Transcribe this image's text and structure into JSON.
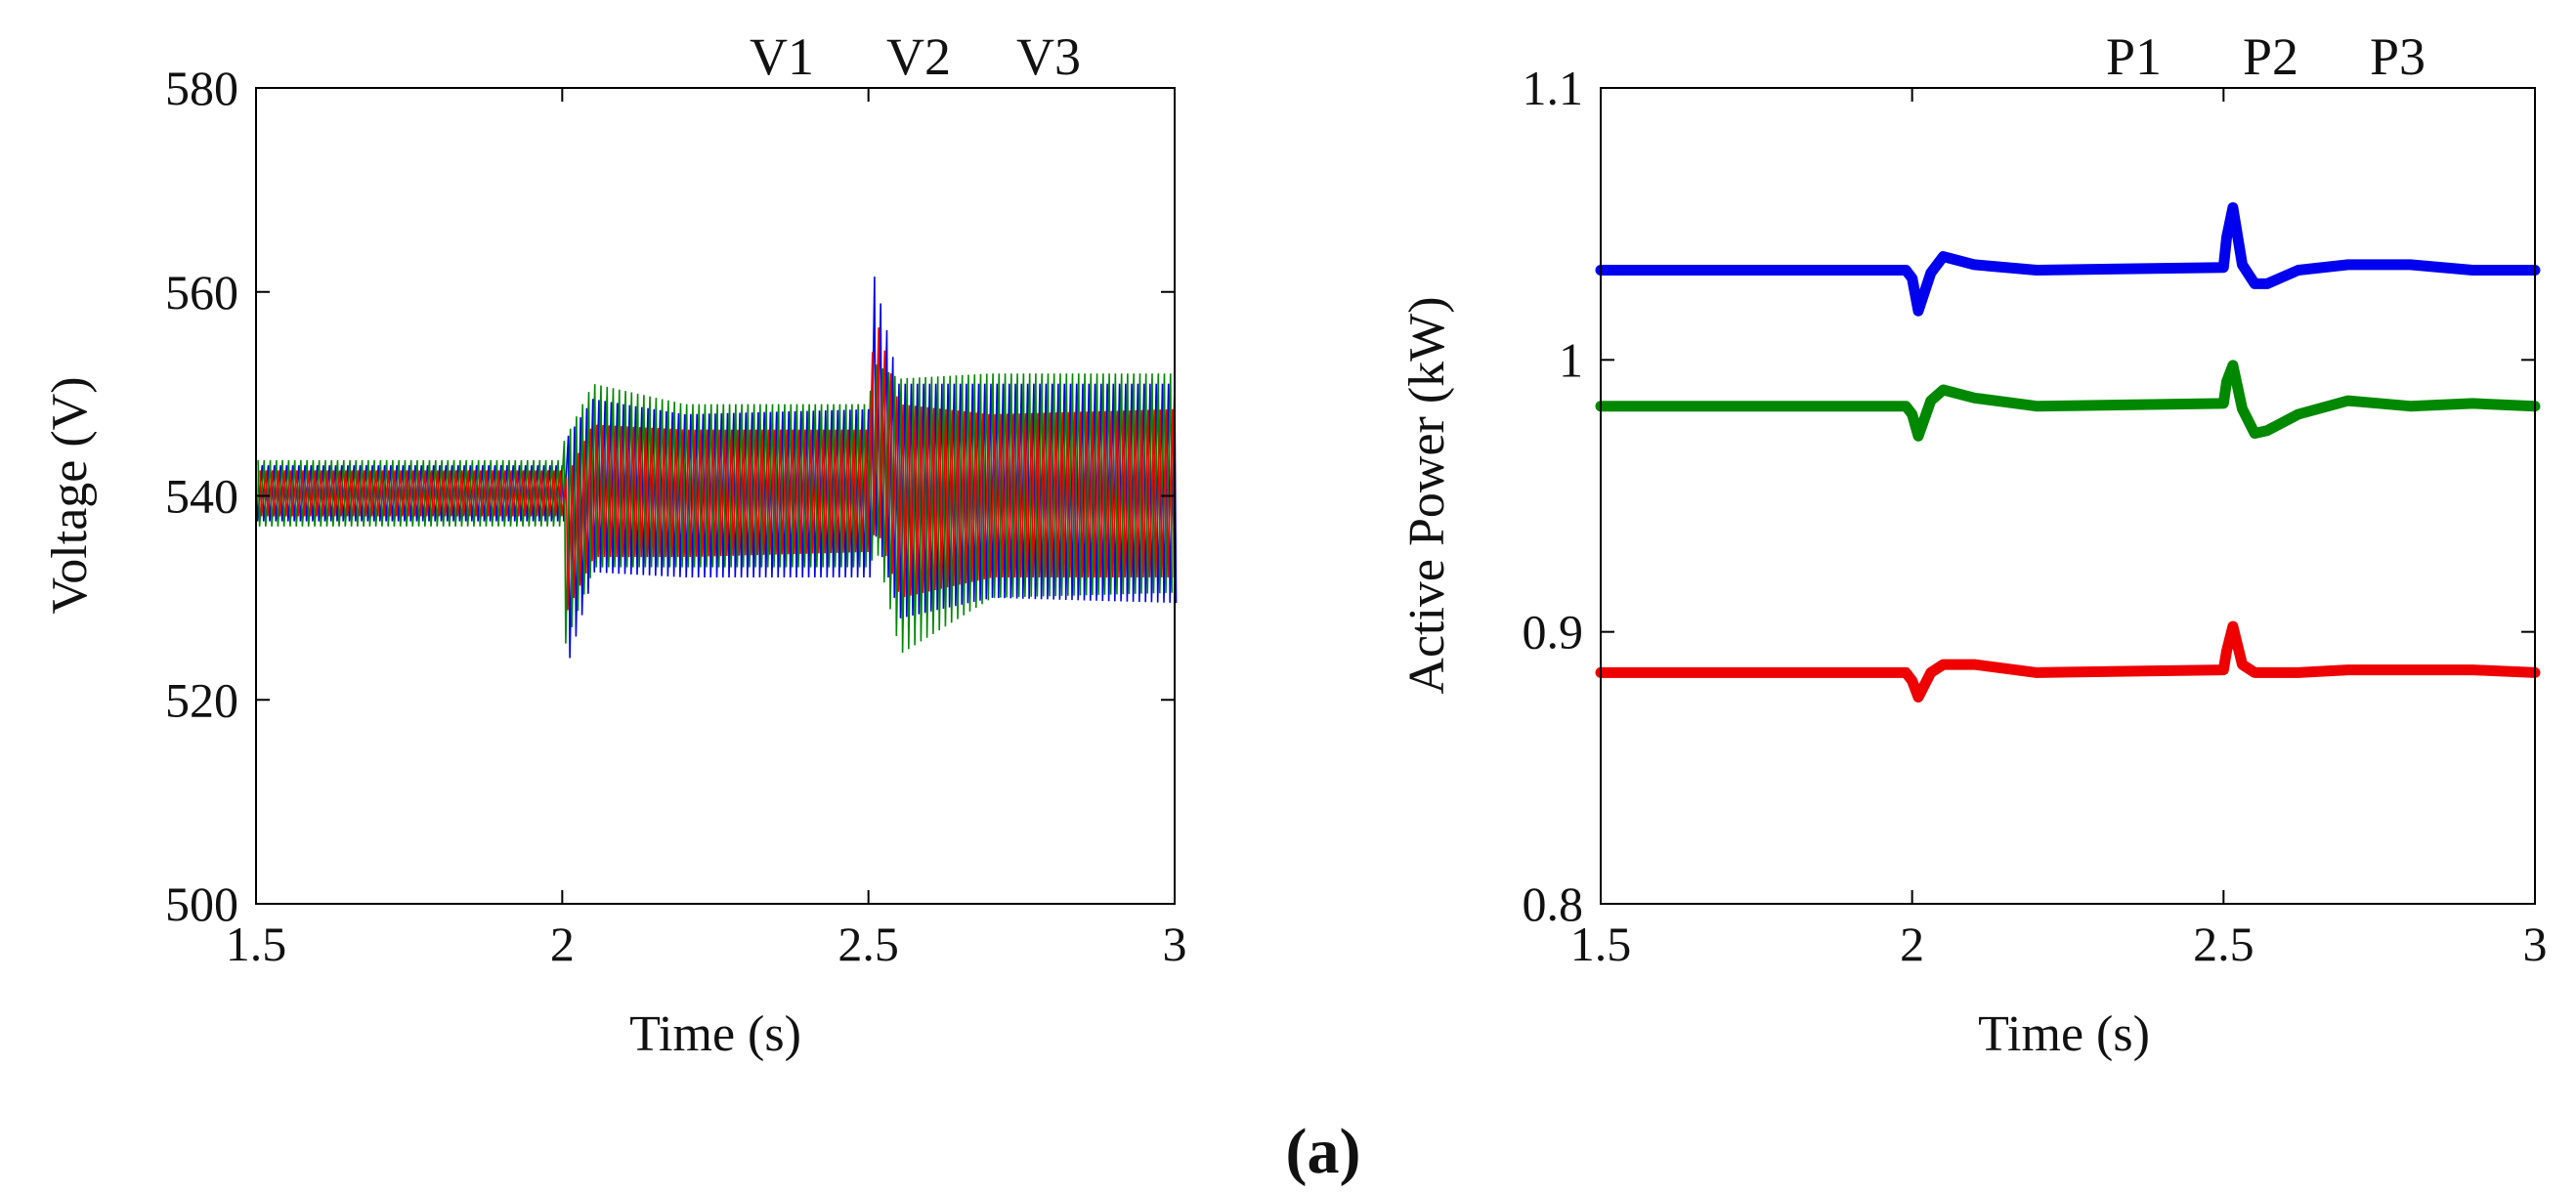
{
  "caption": "(a)",
  "chart_data": [
    {
      "type": "line",
      "xlabel": "Time (s)",
      "ylabel": "Voltage (V)",
      "xlim": [
        1.5,
        3
      ],
      "ylim": [
        500,
        580
      ],
      "xticks": [
        1.5,
        2,
        2.5,
        3
      ],
      "xtick_labels": [
        "1.5",
        "2",
        "2.5",
        "3"
      ],
      "yticks": [
        500,
        520,
        540,
        560,
        580
      ],
      "ytick_labels": [
        "500",
        "520",
        "540",
        "560",
        "580"
      ],
      "legend_placement": "top-right, above plot",
      "series": [
        {
          "name": "V1",
          "color": "#0000ee",
          "envelope": [
            {
              "t": 1.5,
              "low": 537.5,
              "high": 543.0
            },
            {
              "t": 2.0,
              "low": 537.5,
              "high": 543.0
            },
            {
              "t": 2.0,
              "low": 522.0,
              "high": 545.0
            },
            {
              "t": 2.05,
              "low": 532.5,
              "high": 549.5
            },
            {
              "t": 2.2,
              "low": 532.0,
              "high": 548.0
            },
            {
              "t": 2.5,
              "low": 532.0,
              "high": 548.5
            },
            {
              "t": 2.51,
              "low": 536.0,
              "high": 561.5
            },
            {
              "t": 2.55,
              "low": 528.0,
              "high": 551.0
            },
            {
              "t": 2.7,
              "low": 530.0,
              "high": 551.0
            },
            {
              "t": 3.0,
              "low": 529.5,
              "high": 551.0
            }
          ]
        },
        {
          "name": "V2",
          "color": "#008800",
          "envelope": [
            {
              "t": 1.5,
              "low": 537.0,
              "high": 543.5
            },
            {
              "t": 2.0,
              "low": 537.0,
              "high": 543.5
            },
            {
              "t": 2.0,
              "low": 525.0,
              "high": 545.0
            },
            {
              "t": 2.05,
              "low": 533.0,
              "high": 551.0
            },
            {
              "t": 2.2,
              "low": 533.0,
              "high": 549.0
            },
            {
              "t": 2.5,
              "low": 533.0,
              "high": 549.0
            },
            {
              "t": 2.51,
              "low": 535.0,
              "high": 553.0
            },
            {
              "t": 2.55,
              "low": 524.5,
              "high": 551.5
            },
            {
              "t": 2.7,
              "low": 530.0,
              "high": 552.0
            },
            {
              "t": 3.0,
              "low": 530.5,
              "high": 552.0
            }
          ]
        },
        {
          "name": "V3",
          "color": "#ee0000",
          "envelope": [
            {
              "t": 1.5,
              "low": 538.0,
              "high": 542.5
            },
            {
              "t": 2.0,
              "low": 538.0,
              "high": 542.5
            },
            {
              "t": 2.0,
              "low": 528.0,
              "high": 541.0
            },
            {
              "t": 2.05,
              "low": 534.0,
              "high": 547.0
            },
            {
              "t": 2.2,
              "low": 534.0,
              "high": 546.5
            },
            {
              "t": 2.5,
              "low": 534.5,
              "high": 546.5
            },
            {
              "t": 2.51,
              "low": 537.0,
              "high": 558.0
            },
            {
              "t": 2.55,
              "low": 530.0,
              "high": 549.0
            },
            {
              "t": 2.7,
              "low": 532.0,
              "high": 548.0
            },
            {
              "t": 3.0,
              "low": 532.0,
              "high": 548.5
            }
          ]
        }
      ]
    },
    {
      "type": "line",
      "xlabel": "Time (s)",
      "ylabel": "Active Power (kW)",
      "xlim": [
        1.5,
        3
      ],
      "ylim": [
        0.8,
        1.1
      ],
      "xticks": [
        1.5,
        2,
        2.5,
        3
      ],
      "xtick_labels": [
        "1.5",
        "2",
        "2.5",
        "3"
      ],
      "yticks": [
        0.8,
        0.9,
        1.0,
        1.1
      ],
      "ytick_labels": [
        "0.8",
        "0.9",
        "1",
        "1.1"
      ],
      "legend_placement": "top-right, above plot",
      "series": [
        {
          "name": "P1",
          "color": "#0000ee",
          "x": [
            1.5,
            1.99,
            2.0,
            2.01,
            2.03,
            2.05,
            2.1,
            2.2,
            2.5,
            2.505,
            2.515,
            2.53,
            2.55,
            2.57,
            2.62,
            2.7,
            2.8,
            2.9,
            3.0
          ],
          "y": [
            1.033,
            1.033,
            1.03,
            1.018,
            1.032,
            1.038,
            1.035,
            1.033,
            1.034,
            1.045,
            1.056,
            1.035,
            1.028,
            1.028,
            1.033,
            1.035,
            1.035,
            1.033,
            1.033
          ]
        },
        {
          "name": "P2",
          "color": "#008800",
          "x": [
            1.5,
            1.99,
            2.0,
            2.01,
            2.03,
            2.05,
            2.1,
            2.2,
            2.5,
            2.505,
            2.515,
            2.53,
            2.55,
            2.57,
            2.62,
            2.7,
            2.8,
            2.9,
            3.0
          ],
          "y": [
            0.983,
            0.983,
            0.98,
            0.972,
            0.985,
            0.989,
            0.986,
            0.983,
            0.984,
            0.992,
            0.998,
            0.982,
            0.973,
            0.974,
            0.98,
            0.985,
            0.983,
            0.984,
            0.983
          ]
        },
        {
          "name": "P3",
          "color": "#ee0000",
          "x": [
            1.5,
            1.99,
            2.0,
            2.01,
            2.03,
            2.05,
            2.1,
            2.2,
            2.5,
            2.505,
            2.515,
            2.53,
            2.55,
            2.57,
            2.62,
            2.7,
            2.8,
            2.9,
            3.0
          ],
          "y": [
            0.885,
            0.885,
            0.882,
            0.876,
            0.885,
            0.888,
            0.888,
            0.885,
            0.886,
            0.893,
            0.902,
            0.888,
            0.885,
            0.885,
            0.885,
            0.886,
            0.886,
            0.886,
            0.885
          ]
        }
      ]
    }
  ]
}
